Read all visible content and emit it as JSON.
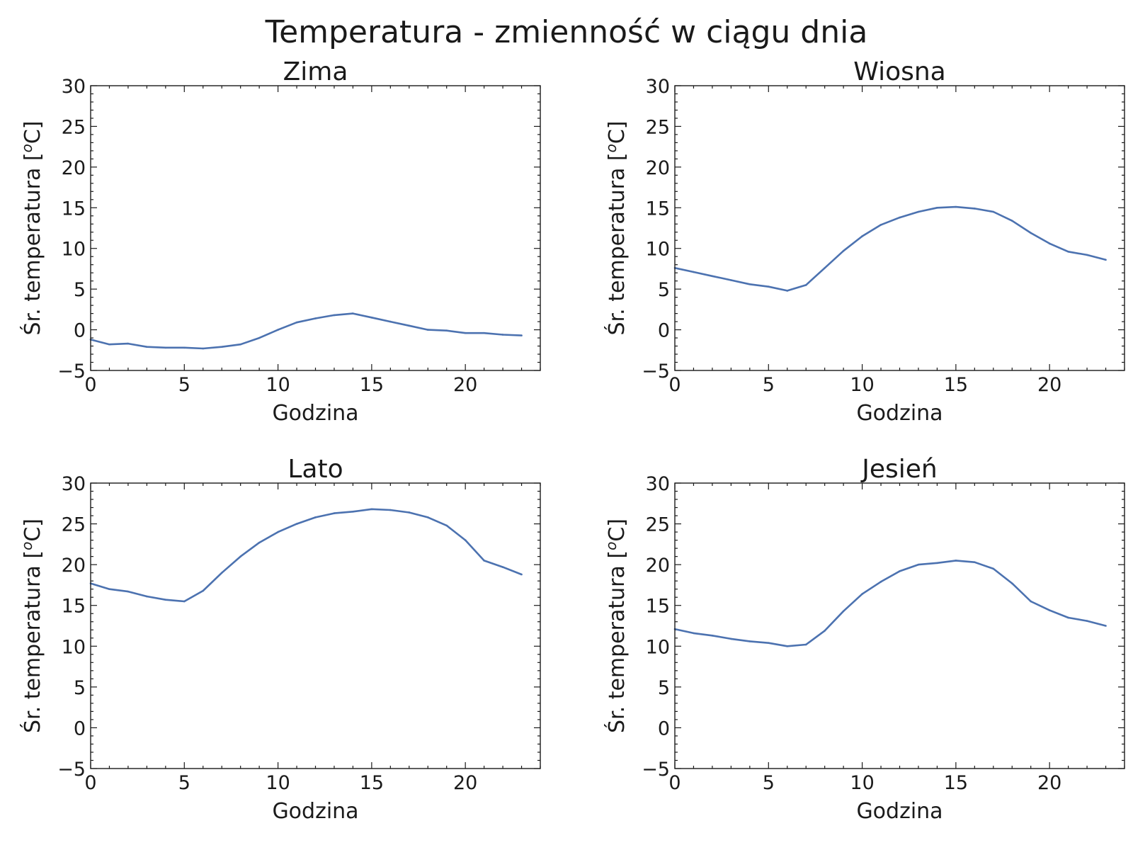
{
  "chart_data": {
    "title": "Temperatura - zmienność w ciągu dnia",
    "subplots": [
      {
        "type": "line",
        "title": "Zima",
        "xlabel": "Godzina",
        "ylabel": "Śr. temperatura [",
        "ylabel_sup": "o",
        "ylabel_end": "C]",
        "xlim": [
          0,
          24
        ],
        "ylim": [
          -5,
          30
        ],
        "xticks": [
          "0",
          "5",
          "10",
          "15",
          "20"
        ],
        "yticks": [
          "30",
          "25",
          "20",
          "15",
          "10",
          "5",
          "0",
          "−5"
        ],
        "grid": false,
        "color": "#4c72b0",
        "x": [
          0,
          1,
          2,
          3,
          4,
          5,
          6,
          7,
          8,
          9,
          10,
          11,
          12,
          13,
          14,
          15,
          16,
          17,
          18,
          19,
          20,
          21,
          22,
          23
        ],
        "y": [
          -1.2,
          -1.8,
          -1.7,
          -2.1,
          -2.2,
          -2.2,
          -2.3,
          -2.1,
          -1.8,
          -1.0,
          0.0,
          0.9,
          1.4,
          1.8,
          2.0,
          1.5,
          1.0,
          0.5,
          0.0,
          -0.1,
          -0.4,
          -0.4,
          -0.6,
          -0.7
        ]
      },
      {
        "type": "line",
        "title": "Wiosna",
        "xlabel": "Godzina",
        "ylabel": "Śr. temperatura [",
        "ylabel_sup": "o",
        "ylabel_end": "C]",
        "xlim": [
          0,
          24
        ],
        "ylim": [
          -5,
          30
        ],
        "xticks": [
          "0",
          "5",
          "10",
          "15",
          "20"
        ],
        "yticks": [
          "30",
          "25",
          "20",
          "15",
          "10",
          "5",
          "0",
          "−5"
        ],
        "grid": false,
        "color": "#4c72b0",
        "x": [
          0,
          1,
          2,
          3,
          4,
          5,
          6,
          7,
          8,
          9,
          10,
          11,
          12,
          13,
          14,
          15,
          16,
          17,
          18,
          19,
          20,
          21,
          22,
          23
        ],
        "y": [
          7.6,
          7.1,
          6.6,
          6.1,
          5.6,
          5.3,
          4.8,
          5.5,
          7.6,
          9.7,
          11.5,
          12.9,
          13.8,
          14.5,
          15.0,
          15.1,
          14.9,
          14.5,
          13.4,
          11.9,
          10.6,
          9.6,
          9.2,
          8.6
        ]
      },
      {
        "type": "line",
        "title": "Lato",
        "xlabel": "Godzina",
        "ylabel": "Śr. temperatura [",
        "ylabel_sup": "o",
        "ylabel_end": "C]",
        "xlim": [
          0,
          24
        ],
        "ylim": [
          -5,
          30
        ],
        "xticks": [
          "0",
          "5",
          "10",
          "15",
          "20"
        ],
        "yticks": [
          "30",
          "25",
          "20",
          "15",
          "10",
          "5",
          "0",
          "−5"
        ],
        "grid": false,
        "color": "#4c72b0",
        "x": [
          0,
          1,
          2,
          3,
          4,
          5,
          6,
          7,
          8,
          9,
          10,
          11,
          12,
          13,
          14,
          15,
          16,
          17,
          18,
          19,
          20,
          21,
          22,
          23
        ],
        "y": [
          17.7,
          17.0,
          16.7,
          16.1,
          15.7,
          15.5,
          16.8,
          19.0,
          21.0,
          22.7,
          24.0,
          25.0,
          25.8,
          26.3,
          26.5,
          26.8,
          26.7,
          26.4,
          25.8,
          24.8,
          23.0,
          20.5,
          19.7,
          18.8
        ]
      },
      {
        "type": "line",
        "title": "Jesień",
        "xlabel": "Godzina",
        "ylabel": "Śr. temperatura [",
        "ylabel_sup": "o",
        "ylabel_end": "C]",
        "xlim": [
          0,
          24
        ],
        "ylim": [
          -5,
          30
        ],
        "xticks": [
          "0",
          "5",
          "10",
          "15",
          "20"
        ],
        "yticks": [
          "30",
          "25",
          "20",
          "15",
          "10",
          "5",
          "0",
          "−5"
        ],
        "grid": false,
        "color": "#4c72b0",
        "x": [
          0,
          1,
          2,
          3,
          4,
          5,
          6,
          7,
          8,
          9,
          10,
          11,
          12,
          13,
          14,
          15,
          16,
          17,
          18,
          19,
          20,
          21,
          22,
          23
        ],
        "y": [
          12.1,
          11.6,
          11.3,
          10.9,
          10.6,
          10.4,
          10.0,
          10.2,
          11.9,
          14.3,
          16.4,
          17.9,
          19.2,
          20.0,
          20.2,
          20.5,
          20.3,
          19.5,
          17.7,
          15.5,
          14.4,
          13.5,
          13.1,
          12.5
        ]
      }
    ]
  }
}
